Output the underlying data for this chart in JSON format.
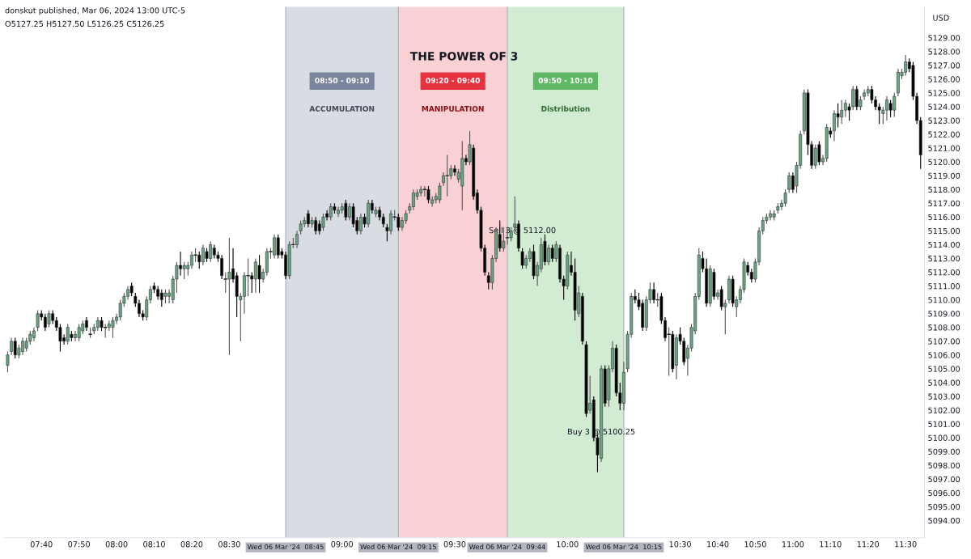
{
  "chart_data": {
    "type": "candlestick",
    "title": "THE POWER OF 3",
    "ylabel": "USD",
    "annotations": [
      "donskut published, Mar 06, 2024 13:00 UTC-5",
      "O5127.25 H5127.50 L5126.25 C5126.25",
      "08:50 - 09:10",
      "09:20 - 09:40",
      "09:50 - 10:10",
      {
        "text": "Sell 3 @ 5112.00",
        "x": "2024-03-06T09:48",
        "y": 5115.0
      },
      {
        "text": "Buy 3 @ 5100.25",
        "x": "2024-03-06T10:09",
        "y": 5100.4
      }
    ],
    "bands": [
      {
        "axis": "x",
        "from": "2024-03-06T08:45",
        "to": "2024-03-06T09:15",
        "label": "ACCUMULATION",
        "color": "#d9dce3"
      },
      {
        "axis": "x",
        "from": "2024-03-06T09:15",
        "to": "2024-03-06T09:44",
        "label": "MANIPULATION",
        "color": "#f9d0d3"
      },
      {
        "axis": "x",
        "from": "2024-03-06T09:44",
        "to": "2024-03-06T10:15",
        "label": "Distribution",
        "color": "#d2ebd3"
      }
    ],
    "ref_lines": [
      {
        "axis": "x",
        "value": "2024-03-06T08:45",
        "label": "Wed 06 Mar '24  08:45",
        "color": "#b2b5be"
      },
      {
        "axis": "x",
        "value": "2024-03-06T09:15",
        "label": "Wed 06 Mar '24  09:15",
        "color": "#b2b5be"
      },
      {
        "axis": "x",
        "value": "2024-03-06T09:44",
        "label": "Wed 06 Mar '24  09:44",
        "color": "#b2b5be"
      },
      {
        "axis": "x",
        "value": "2024-03-06T10:15",
        "label": "Wed 06 Mar '24  10:15",
        "color": "#b2b5be"
      }
    ],
    "xlim": [
      "2024-03-06T07:30",
      "2024-03-06T11:35"
    ],
    "xticks": [
      {
        "value": "2024-03-06T07:40",
        "label": "07:40"
      },
      {
        "value": "2024-03-06T07:50",
        "label": "07:50"
      },
      {
        "value": "2024-03-06T08:00",
        "label": "08:00"
      },
      {
        "value": "2024-03-06T08:10",
        "label": "08:10"
      },
      {
        "value": "2024-03-06T08:20",
        "label": "08:20"
      },
      {
        "value": "2024-03-06T08:30",
        "label": "08:30"
      },
      {
        "value": "2024-03-06T09:00",
        "label": "09:00"
      },
      {
        "value": "2024-03-06T09:30",
        "label": "09:30"
      },
      {
        "value": "2024-03-06T10:00",
        "label": "10:00"
      },
      {
        "value": "2024-03-06T10:30",
        "label": "10:30"
      },
      {
        "value": "2024-03-06T10:40",
        "label": "10:40"
      },
      {
        "value": "2024-03-06T10:50",
        "label": "10:50"
      },
      {
        "value": "2024-03-06T11:00",
        "label": "11:00"
      },
      {
        "value": "2024-03-06T11:10",
        "label": "11:10"
      },
      {
        "value": "2024-03-06T11:20",
        "label": "11:20"
      },
      {
        "value": "2024-03-06T11:30",
        "label": "11:30"
      }
    ],
    "ylim": [
      5092.75,
      5131.25
    ],
    "yticks": [
      {
        "value": 5094,
        "label": "5094.00"
      },
      {
        "value": 5095,
        "label": "5095.00"
      },
      {
        "value": 5096,
        "label": "5096.00"
      },
      {
        "value": 5097,
        "label": "5097.00"
      },
      {
        "value": 5098,
        "label": "5098.00"
      },
      {
        "value": 5099,
        "label": "5099.00"
      },
      {
        "value": 5100,
        "label": "5100.00"
      },
      {
        "value": 5101,
        "label": "5101.00"
      },
      {
        "value": 5102,
        "label": "5102.00"
      },
      {
        "value": 5103,
        "label": "5103.00"
      },
      {
        "value": 5104,
        "label": "5104.00"
      },
      {
        "value": 5105,
        "label": "5105.00"
      },
      {
        "value": 5106,
        "label": "5106.00"
      },
      {
        "value": 5107,
        "label": "5107.00"
      },
      {
        "value": 5108,
        "label": "5108.00"
      },
      {
        "value": 5109,
        "label": "5109.00"
      },
      {
        "value": 5110,
        "label": "5110.00"
      },
      {
        "value": 5111,
        "label": "5111.00"
      },
      {
        "value": 5112,
        "label": "5112.00"
      },
      {
        "value": 5113,
        "label": "5113.00"
      },
      {
        "value": 5114,
        "label": "5114.00"
      },
      {
        "value": 5115,
        "label": "5115.00"
      },
      {
        "value": 5116,
        "label": "5116.00"
      },
      {
        "value": 5117,
        "label": "5117.00"
      },
      {
        "value": 5118,
        "label": "5118.00"
      },
      {
        "value": 5119,
        "label": "5119.00"
      },
      {
        "value": 5120,
        "label": "5120.00"
      },
      {
        "value": 5121,
        "label": "5121.00"
      },
      {
        "value": 5122,
        "label": "5122.00"
      },
      {
        "value": 5123,
        "label": "5123.00"
      },
      {
        "value": 5124,
        "label": "5124.00"
      },
      {
        "value": 5125,
        "label": "5125.00"
      },
      {
        "value": 5126,
        "label": "5126.00"
      },
      {
        "value": 5127,
        "label": "5127.00"
      },
      {
        "value": 5128,
        "label": "5128.00"
      },
      {
        "value": 5129,
        "label": "5129.00"
      }
    ],
    "x": [
      "2024-03-06T07:31",
      "2024-03-06T07:32",
      "2024-03-06T07:33",
      "2024-03-06T07:34",
      "2024-03-06T07:35",
      "2024-03-06T07:36",
      "2024-03-06T07:37",
      "2024-03-06T07:38",
      "2024-03-06T07:39",
      "2024-03-06T07:40",
      "2024-03-06T07:41",
      "2024-03-06T07:42",
      "2024-03-06T07:43",
      "2024-03-06T07:44",
      "2024-03-06T07:45",
      "2024-03-06T07:46",
      "2024-03-06T07:47",
      "2024-03-06T07:48",
      "2024-03-06T07:49",
      "2024-03-06T07:50",
      "2024-03-06T07:51",
      "2024-03-06T07:52",
      "2024-03-06T07:53",
      "2024-03-06T07:54",
      "2024-03-06T07:55",
      "2024-03-06T07:56",
      "2024-03-06T07:57",
      "2024-03-06T07:58",
      "2024-03-06T07:59",
      "2024-03-06T08:00",
      "2024-03-06T08:01",
      "2024-03-06T08:02",
      "2024-03-06T08:03",
      "2024-03-06T08:04",
      "2024-03-06T08:05",
      "2024-03-06T08:06",
      "2024-03-06T08:07",
      "2024-03-06T08:08",
      "2024-03-06T08:09",
      "2024-03-06T08:10",
      "2024-03-06T08:11",
      "2024-03-06T08:12",
      "2024-03-06T08:13",
      "2024-03-06T08:14",
      "2024-03-06T08:15",
      "2024-03-06T08:16",
      "2024-03-06T08:17",
      "2024-03-06T08:18",
      "2024-03-06T08:19",
      "2024-03-06T08:20",
      "2024-03-06T08:21",
      "2024-03-06T08:22",
      "2024-03-06T08:23",
      "2024-03-06T08:24",
      "2024-03-06T08:25",
      "2024-03-06T08:26",
      "2024-03-06T08:27",
      "2024-03-06T08:28",
      "2024-03-06T08:29",
      "2024-03-06T08:30",
      "2024-03-06T08:31",
      "2024-03-06T08:32",
      "2024-03-06T08:33",
      "2024-03-06T08:34",
      "2024-03-06T08:35",
      "2024-03-06T08:36",
      "2024-03-06T08:37",
      "2024-03-06T08:38",
      "2024-03-06T08:39",
      "2024-03-06T08:40",
      "2024-03-06T08:41",
      "2024-03-06T08:42",
      "2024-03-06T08:43",
      "2024-03-06T08:44",
      "2024-03-06T08:45",
      "2024-03-06T08:46",
      "2024-03-06T08:47",
      "2024-03-06T08:48",
      "2024-03-06T08:49",
      "2024-03-06T08:50",
      "2024-03-06T08:51",
      "2024-03-06T08:52",
      "2024-03-06T08:53",
      "2024-03-06T08:54",
      "2024-03-06T08:55",
      "2024-03-06T08:56",
      "2024-03-06T08:57",
      "2024-03-06T08:58",
      "2024-03-06T08:59",
      "2024-03-06T09:00",
      "2024-03-06T09:01",
      "2024-03-06T09:02",
      "2024-03-06T09:03",
      "2024-03-06T09:04",
      "2024-03-06T09:05",
      "2024-03-06T09:06",
      "2024-03-06T09:07",
      "2024-03-06T09:08",
      "2024-03-06T09:09",
      "2024-03-06T09:10",
      "2024-03-06T09:11",
      "2024-03-06T09:12",
      "2024-03-06T09:13",
      "2024-03-06T09:14",
      "2024-03-06T09:15",
      "2024-03-06T09:16",
      "2024-03-06T09:17",
      "2024-03-06T09:18",
      "2024-03-06T09:19",
      "2024-03-06T09:20",
      "2024-03-06T09:21",
      "2024-03-06T09:22",
      "2024-03-06T09:23",
      "2024-03-06T09:24",
      "2024-03-06T09:25",
      "2024-03-06T09:26",
      "2024-03-06T09:27",
      "2024-03-06T09:28",
      "2024-03-06T09:29",
      "2024-03-06T09:30",
      "2024-03-06T09:31",
      "2024-03-06T09:32",
      "2024-03-06T09:33",
      "2024-03-06T09:34",
      "2024-03-06T09:35",
      "2024-03-06T09:36",
      "2024-03-06T09:37",
      "2024-03-06T09:38",
      "2024-03-06T09:39",
      "2024-03-06T09:40",
      "2024-03-06T09:41",
      "2024-03-06T09:42",
      "2024-03-06T09:43",
      "2024-03-06T09:44",
      "2024-03-06T09:45",
      "2024-03-06T09:46",
      "2024-03-06T09:47",
      "2024-03-06T09:48",
      "2024-03-06T09:49",
      "2024-03-06T09:50",
      "2024-03-06T09:51",
      "2024-03-06T09:52",
      "2024-03-06T09:53",
      "2024-03-06T09:54",
      "2024-03-06T09:55",
      "2024-03-06T09:56",
      "2024-03-06T09:57",
      "2024-03-06T09:58",
      "2024-03-06T09:59",
      "2024-03-06T10:00",
      "2024-03-06T10:01",
      "2024-03-06T10:02",
      "2024-03-06T10:03",
      "2024-03-06T10:04",
      "2024-03-06T10:05",
      "2024-03-06T10:06",
      "2024-03-06T10:07",
      "2024-03-06T10:08",
      "2024-03-06T10:09",
      "2024-03-06T10:10",
      "2024-03-06T10:11",
      "2024-03-06T10:12",
      "2024-03-06T10:13",
      "2024-03-06T10:14",
      "2024-03-06T10:15",
      "2024-03-06T10:16",
      "2024-03-06T10:17",
      "2024-03-06T10:18",
      "2024-03-06T10:19",
      "2024-03-06T10:20",
      "2024-03-06T10:21",
      "2024-03-06T10:22",
      "2024-03-06T10:23",
      "2024-03-06T10:24",
      "2024-03-06T10:25",
      "2024-03-06T10:26",
      "2024-03-06T10:27",
      "2024-03-06T10:28",
      "2024-03-06T10:29",
      "2024-03-06T10:30",
      "2024-03-06T10:31",
      "2024-03-06T10:32",
      "2024-03-06T10:33",
      "2024-03-06T10:34",
      "2024-03-06T10:35",
      "2024-03-06T10:36",
      "2024-03-06T10:37",
      "2024-03-06T10:38",
      "2024-03-06T10:39",
      "2024-03-06T10:40",
      "2024-03-06T10:41",
      "2024-03-06T10:42",
      "2024-03-06T10:43",
      "2024-03-06T10:44",
      "2024-03-06T10:45",
      "2024-03-06T10:46",
      "2024-03-06T10:47",
      "2024-03-06T10:48",
      "2024-03-06T10:49",
      "2024-03-06T10:50",
      "2024-03-06T10:51",
      "2024-03-06T10:52",
      "2024-03-06T10:53",
      "2024-03-06T10:54",
      "2024-03-06T10:55",
      "2024-03-06T10:56",
      "2024-03-06T10:57",
      "2024-03-06T10:58",
      "2024-03-06T10:59",
      "2024-03-06T11:00",
      "2024-03-06T11:01",
      "2024-03-06T11:02",
      "2024-03-06T11:03",
      "2024-03-06T11:04",
      "2024-03-06T11:05",
      "2024-03-06T11:06",
      "2024-03-06T11:07",
      "2024-03-06T11:08",
      "2024-03-06T11:09",
      "2024-03-06T11:10",
      "2024-03-06T11:11",
      "2024-03-06T11:12",
      "2024-03-06T11:13",
      "2024-03-06T11:14",
      "2024-03-06T11:15",
      "2024-03-06T11:16",
      "2024-03-06T11:17",
      "2024-03-06T11:18",
      "2024-03-06T11:19",
      "2024-03-06T11:20",
      "2024-03-06T11:21",
      "2024-03-06T11:22",
      "2024-03-06T11:23",
      "2024-03-06T11:24",
      "2024-03-06T11:25",
      "2024-03-06T11:26",
      "2024-03-06T11:27",
      "2024-03-06T11:28",
      "2024-03-06T11:29",
      "2024-03-06T11:30",
      "2024-03-06T11:31",
      "2024-03-06T11:32",
      "2024-03-06T11:33",
      "2024-03-06T11:34"
    ],
    "ohlc": [
      [
        5105.25,
        5106.25,
        5104.75,
        5106
      ],
      [
        5106.25,
        5107.25,
        5106,
        5107
      ],
      [
        5107,
        5107.25,
        5105.75,
        5106
      ],
      [
        5106,
        5106.75,
        5105.75,
        5106.5
      ],
      [
        5106.25,
        5107.25,
        5106,
        5107
      ],
      [
        5106.5,
        5107.25,
        5106.25,
        5107
      ],
      [
        5107,
        5107.75,
        5106.75,
        5107.5
      ],
      [
        5107.25,
        5108,
        5107,
        5107.75
      ],
      [
        5108,
        5109.25,
        5107.75,
        5109
      ],
      [
        5109,
        5109.25,
        5108.5,
        5108.75
      ],
      [
        5108.75,
        5109,
        5107.75,
        5108
      ],
      [
        5108.25,
        5109.25,
        5108,
        5109
      ],
      [
        5109,
        5109.25,
        5108.25,
        5108.5
      ],
      [
        5108.5,
        5108.75,
        5107.75,
        5108
      ],
      [
        5108,
        5108.25,
        5106.25,
        5107
      ],
      [
        5107.25,
        5107.5,
        5106.75,
        5107
      ],
      [
        5107,
        5108.25,
        5106.75,
        5108
      ],
      [
        5107.5,
        5107.75,
        5107,
        5107.25
      ],
      [
        5107.25,
        5107.75,
        5107,
        5107.5
      ],
      [
        5107.25,
        5108.25,
        5107,
        5108
      ],
      [
        5107.75,
        5108.5,
        5107.5,
        5108.25
      ],
      [
        5108.5,
        5108.75,
        5107.75,
        5108
      ],
      [
        5107.5,
        5108,
        5107.25,
        5107.5
      ],
      [
        5107.75,
        5108.25,
        5107.5,
        5108
      ],
      [
        5108,
        5108.75,
        5107.75,
        5108.5
      ],
      [
        5108.5,
        5108.75,
        5107.75,
        5108
      ],
      [
        5108,
        5108.25,
        5107.25,
        5108
      ],
      [
        5108,
        5108.5,
        5107.75,
        5108.25
      ],
      [
        5108,
        5108.75,
        5107.25,
        5108.5
      ],
      [
        5108.5,
        5109,
        5108.25,
        5108.75
      ],
      [
        5108.75,
        5110,
        5108.5,
        5109.75
      ],
      [
        5109.75,
        5110.5,
        5109.5,
        5110.25
      ],
      [
        5110.25,
        5111,
        5110,
        5110.75
      ],
      [
        5111,
        5111.25,
        5110.25,
        5110.5
      ],
      [
        5110.25,
        5110.5,
        5109.5,
        5109.75
      ],
      [
        5109.75,
        5110,
        5108.75,
        5109
      ],
      [
        5109,
        5109.25,
        5108.5,
        5108.75
      ],
      [
        5108.75,
        5110.25,
        5108.5,
        5110
      ],
      [
        5110,
        5111,
        5109.75,
        5110.75
      ],
      [
        5111,
        5111.25,
        5110.5,
        5110.75
      ],
      [
        5110.75,
        5111,
        5110,
        5110.25
      ],
      [
        5110.5,
        5110.75,
        5109.5,
        5110
      ],
      [
        5110.25,
        5110.75,
        5109.75,
        5110.5
      ],
      [
        5110.25,
        5110.75,
        5109.75,
        5110.5
      ],
      [
        5110,
        5111.75,
        5109.75,
        5111.5
      ],
      [
        5111.5,
        5112.75,
        5110.5,
        5112.5
      ],
      [
        5112.5,
        5113.5,
        5111.75,
        5112.25
      ],
      [
        5112.25,
        5112.75,
        5111.5,
        5112.5
      ],
      [
        5112.25,
        5112.75,
        5111.75,
        5112.5
      ],
      [
        5112.5,
        5113.5,
        5112.25,
        5113.25
      ],
      [
        5113.25,
        5113.75,
        5112.75,
        5113.25
      ],
      [
        5113.25,
        5113.5,
        5112.25,
        5112.75
      ],
      [
        5112.75,
        5114,
        5112.5,
        5113.75
      ],
      [
        5113.5,
        5113.75,
        5112.75,
        5113
      ],
      [
        5113,
        5114.25,
        5112.75,
        5114
      ],
      [
        5113.75,
        5114,
        5113,
        5113.25
      ],
      [
        5113.25,
        5113.5,
        5112.75,
        5113
      ],
      [
        5113,
        5113.25,
        5111.5,
        5111.75
      ],
      [
        5111.5,
        5112,
        5110.5,
        5111.5
      ],
      [
        5111.5,
        5114.5,
        5106,
        5112
      ],
      [
        5112.25,
        5113.75,
        5111.25,
        5111.5
      ],
      [
        5111.75,
        5112,
        5108.75,
        5110.25
      ],
      [
        5110,
        5110.5,
        5107,
        5110.25
      ],
      [
        5110.25,
        5112,
        5109,
        5111.75
      ],
      [
        5111.75,
        5113,
        5110.25,
        5111.75
      ],
      [
        5111.75,
        5112,
        5110.5,
        5111.5
      ],
      [
        5111.5,
        5113,
        5110.5,
        5112.75
      ],
      [
        5112.5,
        5113.25,
        5110.5,
        5111.5
      ],
      [
        5111.5,
        5112.25,
        5111.25,
        5112
      ],
      [
        5112,
        5113.75,
        5111.75,
        5113.5
      ],
      [
        5113.5,
        5113.75,
        5113,
        5113.5
      ],
      [
        5113.25,
        5114.75,
        5113,
        5114.5
      ],
      [
        5114.5,
        5114.75,
        5113,
        5113.25
      ],
      [
        5113.5,
        5113.75,
        5113,
        5113.25
      ],
      [
        5113.25,
        5113.5,
        5111.5,
        5111.75
      ],
      [
        5111.75,
        5114.25,
        5111.5,
        5114
      ],
      [
        5114,
        5114.5,
        5113.75,
        5114
      ],
      [
        5114,
        5115,
        5113.75,
        5114.75
      ],
      [
        5115,
        5115.75,
        5114.75,
        5115.5
      ],
      [
        5115.5,
        5116,
        5115.25,
        5115.75
      ],
      [
        5116.25,
        5116.5,
        5115.25,
        5115.5
      ],
      [
        5115.5,
        5116,
        5115.25,
        5115.75
      ],
      [
        5115.75,
        5116,
        5114.75,
        5115
      ],
      [
        5115.5,
        5115.75,
        5114.75,
        5115
      ],
      [
        5115.25,
        5116.25,
        5115,
        5116
      ],
      [
        5116.25,
        5116.5,
        5115.75,
        5116
      ],
      [
        5116,
        5117,
        5115.75,
        5116.75
      ],
      [
        5116.75,
        5117,
        5116.25,
        5116.5
      ],
      [
        5116.25,
        5116.75,
        5116,
        5116.5
      ],
      [
        5116.5,
        5117,
        5116.25,
        5116.75
      ],
      [
        5117,
        5117.25,
        5115.75,
        5116
      ],
      [
        5116,
        5117,
        5115.75,
        5116.75
      ],
      [
        5116.75,
        5117,
        5115.25,
        5115.5
      ],
      [
        5115.75,
        5116,
        5114.75,
        5115
      ],
      [
        5115,
        5116.25,
        5114.75,
        5116
      ],
      [
        5116,
        5116.25,
        5115.25,
        5115.5
      ],
      [
        5115.5,
        5117.25,
        5115.25,
        5117
      ],
      [
        5117,
        5117.25,
        5116.25,
        5116.5
      ],
      [
        5116.25,
        5116.75,
        5116,
        5116.5
      ],
      [
        5116.5,
        5116.75,
        5115.75,
        5116
      ],
      [
        5116,
        5116.25,
        5115.25,
        5115.5
      ],
      [
        5115.25,
        5115.5,
        5114.25,
        5115
      ],
      [
        5115,
        5116.5,
        5114.75,
        5116.25
      ],
      [
        5116,
        5116.5,
        5115.75,
        5116
      ],
      [
        5116,
        5116.25,
        5115,
        5115.25
      ],
      [
        5115.25,
        5116,
        5115,
        5115.75
      ],
      [
        5115.75,
        5116.5,
        5115.5,
        5116.25
      ],
      [
        5116.5,
        5117,
        5116.25,
        5116.75
      ],
      [
        5116.75,
        5118,
        5116.5,
        5117.75
      ],
      [
        5117.5,
        5118,
        5117.25,
        5117.75
      ],
      [
        5117.75,
        5118.25,
        5117.5,
        5118
      ],
      [
        5118,
        5118.25,
        5117.5,
        5118
      ],
      [
        5118,
        5118.25,
        5117,
        5117.25
      ],
      [
        5117,
        5117.5,
        5116.75,
        5117.25
      ],
      [
        5117.25,
        5117.75,
        5117,
        5117.5
      ],
      [
        5117.25,
        5118.5,
        5117,
        5118.25
      ],
      [
        5118.5,
        5119.25,
        5118.25,
        5119
      ],
      [
        5119,
        5120.5,
        5117.5,
        5119
      ],
      [
        5119,
        5119.75,
        5118.75,
        5119.5
      ],
      [
        5119.5,
        5119.75,
        5119,
        5119.25
      ],
      [
        5118.75,
        5119.5,
        5118.5,
        5119.25
      ],
      [
        5118.25,
        5121.5,
        5116.5,
        5120.25
      ],
      [
        5120.25,
        5120.5,
        5119.75,
        5120
      ],
      [
        5120,
        5122.25,
        5119.75,
        5121.25
      ],
      [
        5121,
        5121.25,
        5117.25,
        5117.5
      ],
      [
        5117.75,
        5118,
        5116.25,
        5116.5
      ],
      [
        5116.5,
        5116.75,
        5113.5,
        5113.75
      ],
      [
        5113.75,
        5114,
        5111.75,
        5112
      ],
      [
        5111.75,
        5112,
        5110.75,
        5111.25
      ],
      [
        5111.25,
        5113.25,
        5110.75,
        5113
      ],
      [
        5113,
        5115.25,
        5112.75,
        5115
      ],
      [
        5114.75,
        5115.75,
        5113.5,
        5113.75
      ],
      [
        5113.75,
        5115.25,
        5113.5,
        5114.25
      ],
      [
        5114.5,
        5115.25,
        5114,
        5114.5
      ],
      [
        5114.5,
        5115.25,
        5114.25,
        5115
      ],
      [
        5115.25,
        5117.5,
        5115,
        5115.5
      ],
      [
        5115.5,
        5115.75,
        5113.5,
        5113.75
      ],
      [
        5113.5,
        5113.75,
        5112.25,
        5112.5
      ],
      [
        5112.5,
        5113.25,
        5112.25,
        5113
      ],
      [
        5113,
        5113.75,
        5112.75,
        5113.5
      ],
      [
        5113.5,
        5114,
        5111.5,
        5111.75
      ],
      [
        5111.75,
        5112.75,
        5111,
        5112.5
      ],
      [
        5112.25,
        5114.5,
        5112,
        5114
      ],
      [
        5114.25,
        5114.75,
        5112.5,
        5112.75
      ],
      [
        5112.75,
        5114,
        5112.5,
        5113.75
      ],
      [
        5113.75,
        5114,
        5112.75,
        5113
      ],
      [
        5113,
        5114.25,
        5112.75,
        5114
      ],
      [
        5113.75,
        5114,
        5111.25,
        5111.5
      ],
      [
        5111.5,
        5111.75,
        5110,
        5111
      ],
      [
        5111,
        5113.5,
        5110.75,
        5113.25
      ],
      [
        5112.5,
        5113.5,
        5111.75,
        5112
      ],
      [
        5112,
        5113,
        5108.5,
        5109.25
      ],
      [
        5109,
        5111,
        5108.75,
        5110.5
      ],
      [
        5110.25,
        5110.5,
        5106.75,
        5107
      ],
      [
        5106.75,
        5107,
        5101.5,
        5101.75
      ],
      [
        5102,
        5104.5,
        5101.75,
        5102.5
      ],
      [
        5102.75,
        5103,
        5099.75,
        5100
      ],
      [
        5100,
        5100.25,
        5097.5,
        5098.75
      ],
      [
        5098.5,
        5105.25,
        5098.25,
        5105
      ],
      [
        5105,
        5105.25,
        5102.25,
        5102.5
      ],
      [
        5102.75,
        5105.25,
        5102.25,
        5105
      ],
      [
        5105,
        5107,
        5104.75,
        5106.5
      ],
      [
        5106.5,
        5106.75,
        5103,
        5103.25
      ],
      [
        5103.25,
        5104,
        5102,
        5102.5
      ],
      [
        5102.5,
        5105.5,
        5102,
        5104.75
      ],
      [
        5105,
        5107.75,
        5104.75,
        5107.5
      ],
      [
        5107.5,
        5110.5,
        5107.25,
        5110.25
      ],
      [
        5110.25,
        5110.75,
        5109.75,
        5110
      ],
      [
        5110,
        5110.5,
        5109.25,
        5109.5
      ],
      [
        5109.75,
        5110,
        5107.75,
        5108
      ],
      [
        5108,
        5110.25,
        5107.75,
        5110
      ],
      [
        5110,
        5111.25,
        5109.75,
        5110.75
      ],
      [
        5110.75,
        5111.25,
        5109.75,
        5110
      ],
      [
        5110,
        5110.5,
        5109.5,
        5110
      ],
      [
        5110.25,
        5110.5,
        5108.25,
        5108.5
      ],
      [
        5108.5,
        5108.75,
        5107,
        5107.25
      ],
      [
        5107.5,
        5108,
        5104.5,
        5107.5
      ],
      [
        5107.5,
        5107.75,
        5104.75,
        5105
      ],
      [
        5105.25,
        5107.5,
        5104.25,
        5107.25
      ],
      [
        5107.5,
        5108,
        5106.75,
        5107
      ],
      [
        5107,
        5107.25,
        5105.25,
        5105.5
      ],
      [
        5105.75,
        5106.75,
        5104.5,
        5106.5
      ],
      [
        5106.5,
        5108.25,
        5106.25,
        5108
      ],
      [
        5107.75,
        5110.5,
        5107.5,
        5110.25
      ],
      [
        5110.25,
        5113.75,
        5110,
        5113.25
      ],
      [
        5113,
        5113.5,
        5112,
        5112.25
      ],
      [
        5112.25,
        5113,
        5109.5,
        5109.75
      ],
      [
        5109.75,
        5112.5,
        5109.5,
        5112.25
      ],
      [
        5112,
        5112.25,
        5110,
        5110.25
      ],
      [
        5110.25,
        5110.75,
        5110,
        5110.5
      ],
      [
        5110.75,
        5111,
        5109.25,
        5109.5
      ],
      [
        5109.5,
        5110,
        5107.5,
        5109.75
      ],
      [
        5110,
        5111.75,
        5109.75,
        5111.5
      ],
      [
        5111.5,
        5111.75,
        5109.5,
        5109.75
      ],
      [
        5109.5,
        5110.25,
        5108.75,
        5110
      ],
      [
        5110,
        5111,
        5109.75,
        5110.75
      ],
      [
        5110.75,
        5113,
        5110.5,
        5112.75
      ],
      [
        5112.5,
        5112.75,
        5111.75,
        5112
      ],
      [
        5112,
        5112.25,
        5111.25,
        5111.5
      ],
      [
        5111.5,
        5113,
        5111.25,
        5112.75
      ],
      [
        5112.75,
        5115.25,
        5112.5,
        5115
      ],
      [
        5115,
        5116,
        5114.75,
        5115.75
      ],
      [
        5115.75,
        5116.25,
        5115.5,
        5116
      ],
      [
        5116,
        5116.5,
        5115.75,
        5116.25
      ],
      [
        5116,
        5116.5,
        5115.75,
        5116.25
      ],
      [
        5116.5,
        5117,
        5116.25,
        5116.75
      ],
      [
        5116.75,
        5117.25,
        5116.5,
        5117
      ],
      [
        5117,
        5118,
        5116.75,
        5117.75
      ],
      [
        5118,
        5119.25,
        5117.75,
        5119
      ],
      [
        5119,
        5119.25,
        5117.75,
        5118
      ],
      [
        5118.25,
        5120,
        5117.75,
        5119.75
      ],
      [
        5119.75,
        5122.25,
        5119.5,
        5122
      ],
      [
        5122.25,
        5125.25,
        5122,
        5125
      ],
      [
        5125,
        5125.25,
        5120.5,
        5121.25
      ],
      [
        5121.25,
        5121.5,
        5119.5,
        5119.75
      ],
      [
        5119.75,
        5121.25,
        5119.5,
        5121
      ],
      [
        5121.25,
        5121.5,
        5119.75,
        5120
      ],
      [
        5120,
        5120.5,
        5119.75,
        5120.25
      ],
      [
        5120.25,
        5122.75,
        5120,
        5122.5
      ],
      [
        5122.25,
        5122.5,
        5121.75,
        5122
      ],
      [
        5122.25,
        5123.75,
        5121.5,
        5123.5
      ],
      [
        5123.5,
        5124.25,
        5122.5,
        5123.25
      ],
      [
        5123.25,
        5124.5,
        5122.75,
        5123.75
      ],
      [
        5123.75,
        5124.5,
        5123.25,
        5124.25
      ],
      [
        5124,
        5124.25,
        5123,
        5123.75
      ],
      [
        5124,
        5125.5,
        5123.75,
        5125.25
      ],
      [
        5125.25,
        5125.5,
        5123.75,
        5124
      ],
      [
        5124,
        5124.75,
        5123.75,
        5124.5
      ],
      [
        5124.75,
        5125.25,
        5124.5,
        5125
      ],
      [
        5125,
        5125.5,
        5124.75,
        5125.25
      ],
      [
        5125.25,
        5125.5,
        5124.25,
        5124.5
      ],
      [
        5124.5,
        5124.75,
        5123.75,
        5124
      ],
      [
        5124,
        5124.25,
        5122.75,
        5123.75
      ],
      [
        5123.5,
        5124,
        5122.75,
        5123.75
      ],
      [
        5123.75,
        5124.75,
        5123,
        5124.5
      ],
      [
        5124.25,
        5124.5,
        5123.25,
        5123.75
      ],
      [
        5123.75,
        5125,
        5123.25,
        5124.75
      ],
      [
        5125,
        5126.75,
        5124.75,
        5126.5
      ],
      [
        5126.25,
        5126.75,
        5126,
        5126.5
      ],
      [
        5126.5,
        5127.75,
        5126.25,
        5127.25
      ],
      [
        5127.25,
        5127.5,
        5126.5,
        5126.75
      ],
      [
        5127,
        5127.25,
        5124.5,
        5124.75
      ],
      [
        5124.75,
        5125,
        5122.75,
        5123
      ],
      [
        5123,
        5123.25,
        5119.5,
        5120.5
      ]
    ]
  }
}
